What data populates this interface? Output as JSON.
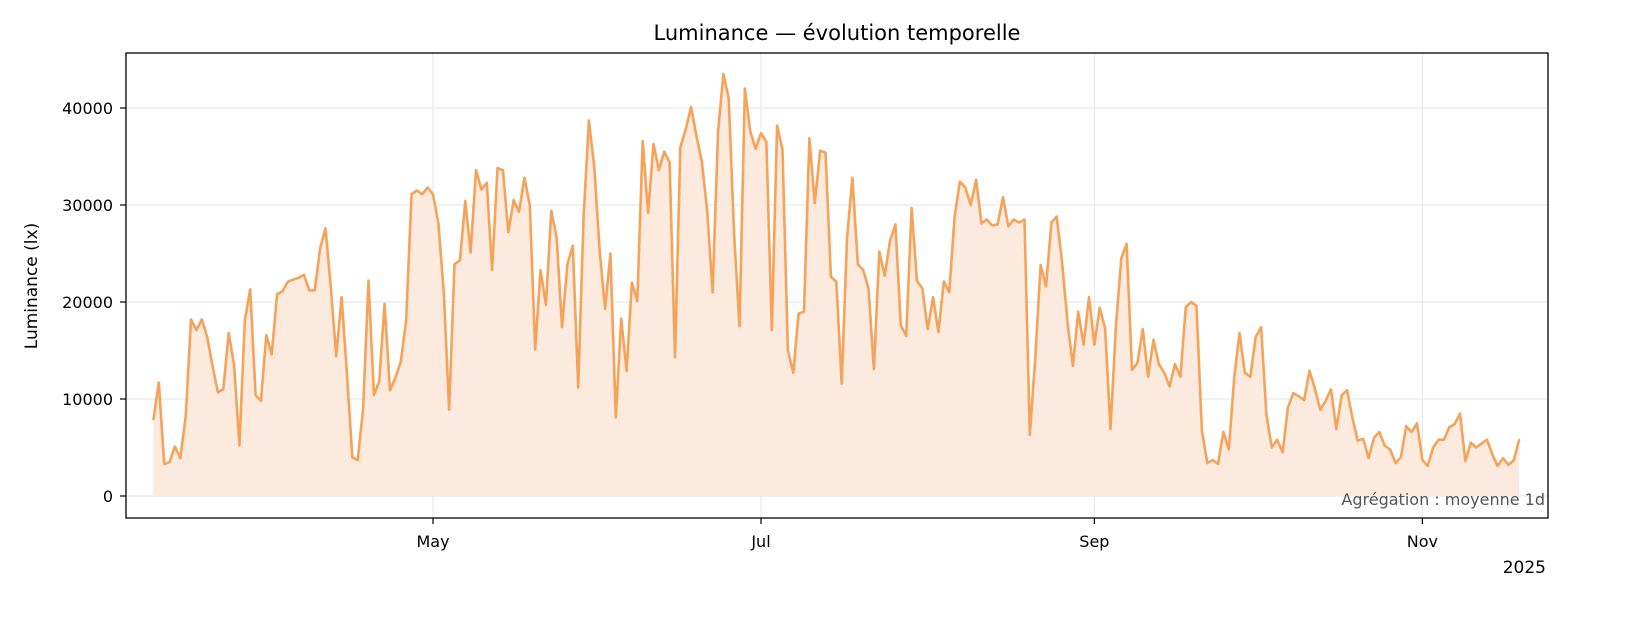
{
  "chart_data": {
    "type": "area",
    "title": "Luminance — évolution temporelle",
    "xlabel": "",
    "ylabel": "Luminance (lx)",
    "x_offset_label": "2025",
    "annotation": "Agrégation : moyenne 1d",
    "ylim": [
      -2300,
      45700
    ],
    "xlim": [
      "2025-03-05",
      "2025-11-24"
    ],
    "y_ticks": [
      0,
      10000,
      20000,
      30000,
      40000
    ],
    "y_tick_labels": [
      "0",
      "10000",
      "20000",
      "30000",
      "40000"
    ],
    "x_ticks": [
      "2025-05-01",
      "2025-07-01",
      "2025-09-01",
      "2025-11-01"
    ],
    "x_tick_labels": [
      "May",
      "Jul",
      "Sep",
      "Nov"
    ],
    "grid": true,
    "legend": "none",
    "colors": {
      "line": "#f5a35a",
      "fill": "#fbeadd",
      "grid": "#e6e6e6",
      "annotation": "#555555"
    },
    "series": [
      {
        "month": "2025-03",
        "first_day": 10,
        "values": [
          7900,
          11700,
          3300,
          3500,
          5100,
          3900,
          8200,
          18200,
          17100,
          18200,
          16400,
          13400,
          10700,
          11000,
          16800,
          13500,
          5200,
          18100,
          21300,
          10400,
          9800,
          16600
        ]
      },
      {
        "month": "2025-04",
        "first_day": 1,
        "values": [
          14600,
          20800,
          21100,
          22100,
          22300,
          22500,
          22800,
          21200,
          21200,
          25500,
          27600,
          21500,
          14400,
          20500,
          12500,
          4000,
          3700,
          9000,
          22200,
          10400,
          11800,
          19800,
          10900,
          12200,
          13800,
          18000,
          31100,
          31500,
          31100,
          31800
        ]
      },
      {
        "month": "2025-05",
        "first_day": 1,
        "values": [
          31100,
          28100,
          21000,
          8900,
          23900,
          24300,
          30400,
          25100,
          33600,
          31600,
          32300,
          23300,
          33800,
          33600,
          27200,
          30500,
          29300,
          32800,
          30000,
          15100,
          23300,
          19700,
          29400,
          26600,
          17400,
          23900,
          25800,
          11200,
          28800,
          38700,
          33900
        ]
      },
      {
        "month": "2025-06",
        "first_day": 1,
        "values": [
          25200,
          19300,
          25000,
          8100,
          18300,
          12900,
          22000,
          20100,
          36600,
          29200,
          36300,
          33600,
          35500,
          34400,
          14300,
          35900,
          37800,
          40100,
          37100,
          34500,
          29400,
          21000,
          37500,
          43500,
          41000,
          27000,
          17500,
          42000,
          37600,
          35800
        ]
      },
      {
        "month": "2025-07",
        "first_day": 1,
        "values": [
          37400,
          36500,
          17100,
          38200,
          35700,
          15000,
          12700,
          18800,
          19000,
          36900,
          30200,
          35600,
          35400,
          22600,
          22100,
          11600,
          26500,
          32800,
          23900,
          23300,
          21400,
          13100,
          25200,
          22700,
          26300,
          28000,
          17600,
          16500,
          29700,
          22200,
          21400
        ]
      },
      {
        "month": "2025-08",
        "first_day": 1,
        "values": [
          17200,
          20500,
          16900,
          22100,
          21000,
          28800,
          32400,
          31800,
          30000,
          32600,
          28100,
          28500,
          27900,
          28000,
          30800,
          27800,
          28500,
          28200,
          28500,
          6300,
          14100,
          23800,
          21600,
          28200,
          28800,
          24100,
          17900,
          13400,
          19000,
          15600,
          20500
        ]
      },
      {
        "month": "2025-09",
        "first_day": 1,
        "values": [
          15600,
          19400,
          17300,
          6900,
          17500,
          24500,
          26000,
          13000,
          13700,
          17200,
          12300,
          16100,
          13600,
          12700,
          11300,
          13600,
          12300,
          19500,
          20000,
          19600,
          6700,
          3400,
          3700,
          3300,
          6600,
          4800,
          12200,
          16800,
          12700,
          12300
        ]
      },
      {
        "month": "2025-10",
        "first_day": 1,
        "values": [
          16400,
          17400,
          8400,
          5000,
          5800,
          4500,
          9100,
          10600,
          10300,
          9900,
          12900,
          11100,
          8900,
          9800,
          11000,
          6900,
          10400,
          10900,
          8000,
          5700,
          5900,
          3900,
          6000,
          6600,
          5200,
          4800,
          3400,
          4000,
          7200,
          6600,
          7500
        ]
      },
      {
        "month": "2025-11",
        "first_day": 1,
        "values": [
          3700,
          3100,
          5000,
          5800,
          5800,
          7100,
          7400,
          8500,
          3600,
          5500,
          5000,
          5400,
          5800,
          4300,
          3100,
          3900,
          3200,
          3700,
          5800
        ]
      }
    ]
  }
}
